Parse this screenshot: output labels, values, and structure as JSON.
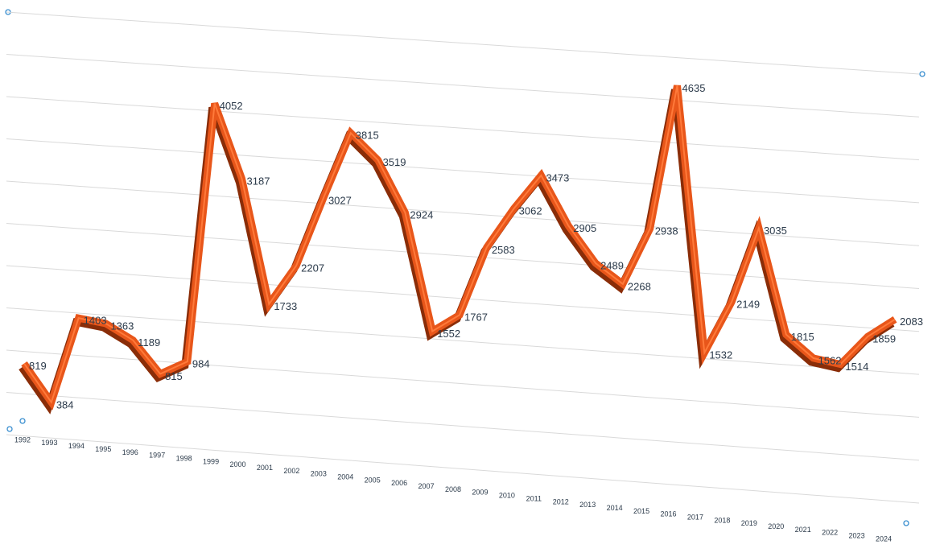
{
  "chart_data": {
    "type": "line",
    "categories": [
      "1992",
      "1993",
      "1994",
      "1995",
      "1996",
      "1997",
      "1998",
      "1999",
      "2000",
      "2001",
      "2002",
      "2003",
      "2004",
      "2005",
      "2006",
      "2007",
      "2008",
      "2009",
      "2010",
      "2011",
      "2012",
      "2013",
      "2014",
      "2015",
      "2016",
      "2017",
      "2018",
      "2019",
      "2020",
      "2021",
      "2022",
      "2023",
      "2024"
    ],
    "values": [
      819,
      384,
      1403,
      1363,
      1189,
      815,
      984,
      4052,
      3187,
      1733,
      2207,
      3027,
      3815,
      3519,
      2924,
      1552,
      1767,
      2583,
      3062,
      3473,
      2905,
      2489,
      2268,
      2938,
      4635,
      1532,
      2149,
      3035,
      1815,
      1562,
      1514,
      1859,
      2083
    ],
    "color": "#e8561a",
    "ylim": [
      0,
      5000
    ],
    "yticks": [
      0,
      500,
      1000,
      1500,
      2000,
      2500,
      3000,
      3500,
      4000,
      4500,
      5000
    ],
    "grid": true
  }
}
